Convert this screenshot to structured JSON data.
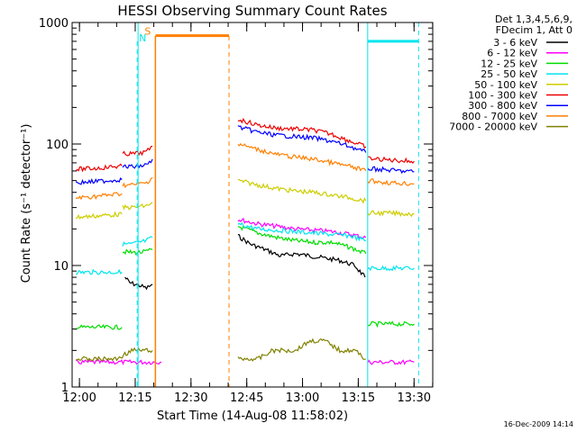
{
  "chart_data": {
    "type": "line",
    "title": "HESSI Observing Summary Count Rates",
    "xlabel": "Start Time (14-Aug-08 11:58:02)",
    "ylabel": "Count Rate (s⁻¹ detector⁻¹)",
    "yscale": "log",
    "ylim": [
      1,
      1000
    ],
    "xlim_minutes_after_start": [
      0,
      97
    ],
    "x_tick_labels": [
      "12:00",
      "12:15",
      "12:30",
      "12:45",
      "13:00",
      "13:15",
      "13:30"
    ],
    "y_tick_labels": [
      "1",
      "10",
      "100",
      "1000"
    ],
    "grid": false,
    "legend_position": "right",
    "legend_header": [
      "Det 1,3,4,5,6,9,",
      "FDecim 1, Att 0"
    ],
    "timestamp": "16-Dec-2009 14:14",
    "x_unit": "minutes after 11:58:02",
    "series": [
      {
        "name": "3 - 6 keV",
        "color": "#000000",
        "segments": [
          {
            "x": [
              14.2,
              15.5,
              17.0,
              18.5,
              20.0,
              21.6
            ],
            "y": [
              8,
              7.2,
              7.0,
              6.8,
              6.5,
              7.0
            ]
          },
          {
            "x": [
              44.6,
              48,
              52,
              56,
              60,
              64,
              68,
              72,
              76,
              78.8
            ],
            "y": [
              17.5,
              15,
              13.5,
              12,
              12.5,
              12,
              11.5,
              11,
              10,
              8
            ]
          }
        ]
      },
      {
        "name": "6 - 12 keV",
        "color": "#ff00ff",
        "segments": [
          {
            "x": [
              1,
              10,
              20,
              24
            ],
            "y": [
              1.6,
              1.6,
              1.6,
              1.6
            ]
          },
          {
            "x": [
              44.6,
              50,
              55,
              60,
              65,
              70,
              75,
              79
            ],
            "y": [
              24,
              22,
              21,
              20,
              19.5,
              19,
              18,
              17
            ]
          },
          {
            "x": [
              79.5,
              85,
              92
            ],
            "y": [
              1.6,
              1.6,
              1.6
            ]
          }
        ]
      },
      {
        "name": "12 - 25 keV",
        "color": "#00dd00",
        "segments": [
          {
            "x": [
              1,
              8,
              13.4
            ],
            "y": [
              3.1,
              3.1,
              3.1
            ]
          },
          {
            "x": [
              13.6,
              16,
              18,
              20,
              21.6
            ],
            "y": [
              13,
              12.8,
              12.8,
              13,
              13.5
            ]
          },
          {
            "x": [
              44.6,
              50,
              55,
              60,
              65,
              70,
              75,
              79
            ],
            "y": [
              21,
              18.5,
              17,
              16,
              15.5,
              15.5,
              14,
              12.5
            ]
          },
          {
            "x": [
              79.5,
              85,
              92
            ],
            "y": [
              3.3,
              3.3,
              3.3
            ]
          }
        ]
      },
      {
        "name": "25 - 50 keV",
        "color": "#00e5ee",
        "segments": [
          {
            "x": [
              1,
              6,
              13.4
            ],
            "y": [
              8.8,
              8.8,
              8.8
            ]
          },
          {
            "x": [
              13.6,
              16,
              18,
              20,
              21.6
            ],
            "y": [
              15,
              15,
              15.5,
              16,
              17
            ]
          },
          {
            "x": [
              44.6,
              50,
              55,
              60,
              65,
              70,
              75,
              79
            ],
            "y": [
              22,
              20,
              19.5,
              19,
              18.5,
              18,
              17.5,
              16
            ]
          },
          {
            "x": [
              79.5,
              85,
              92
            ],
            "y": [
              9.5,
              9.5,
              9.5
            ]
          }
        ]
      },
      {
        "name": "50 - 100 keV",
        "color": "#cdcd00",
        "segments": [
          {
            "x": [
              1,
              6,
              13.4
            ],
            "y": [
              25,
              25.5,
              26.5
            ]
          },
          {
            "x": [
              13.6,
              16,
              18,
              20,
              21.6
            ],
            "y": [
              30,
              30,
              30.5,
              31,
              33
            ]
          },
          {
            "x": [
              44.6,
              50,
              55,
              60,
              65,
              70,
              75,
              79
            ],
            "y": [
              50,
              46,
              43,
              41,
              40,
              38,
              36,
              34
            ]
          },
          {
            "x": [
              79.5,
              85,
              92
            ],
            "y": [
              27,
              27,
              26.5
            ]
          }
        ]
      },
      {
        "name": "100 - 300 keV",
        "color": "#ee0000",
        "segments": [
          {
            "x": [
              1,
              6,
              13.4
            ],
            "y": [
              62,
              63,
              66
            ]
          },
          {
            "x": [
              13.6,
              16,
              18,
              20,
              21.6
            ],
            "y": [
              83,
              83,
              84,
              86,
              96
            ]
          },
          {
            "x": [
              44.6,
              50,
              55,
              60,
              65,
              70,
              75,
              79
            ],
            "y": [
              160,
              143,
              135,
              133,
              130,
              120,
              105,
              95
            ]
          },
          {
            "x": [
              79.5,
              85,
              92
            ],
            "y": [
              76,
              74,
              72
            ]
          }
        ]
      },
      {
        "name": "300 - 800 keV",
        "color": "#0000ff",
        "segments": [
          {
            "x": [
              1,
              6,
              13.4
            ],
            "y": [
              48,
              49,
              51
            ]
          },
          {
            "x": [
              13.6,
              16,
              18,
              20,
              21.6
            ],
            "y": [
              65,
              65,
              66,
              67,
              75
            ]
          },
          {
            "x": [
              44.6,
              50,
              55,
              60,
              65,
              70,
              75,
              79
            ],
            "y": [
              138,
              125,
              118,
              115,
              112,
              105,
              95,
              85
            ]
          },
          {
            "x": [
              79.5,
              85,
              92
            ],
            "y": [
              63,
              61,
              59
            ]
          }
        ]
      },
      {
        "name": "800 - 7000 keV",
        "color": "#ff8000",
        "segments": [
          {
            "x": [
              1,
              6,
              13.4
            ],
            "y": [
              36,
              37,
              39
            ]
          },
          {
            "x": [
              13.6,
              16,
              18,
              20,
              21.6
            ],
            "y": [
              46,
              46,
              47,
              48,
              53
            ]
          },
          {
            "x": [
              44.6,
              50,
              55,
              60,
              65,
              70,
              75,
              79
            ],
            "y": [
              100,
              90,
              82,
              78,
              75,
              70,
              65,
              60
            ]
          },
          {
            "x": [
              79.5,
              85,
              92
            ],
            "y": [
              50,
              48,
              47
            ]
          }
        ]
      },
      {
        "name": "7000 - 20000 keV",
        "color": "#808000",
        "segments": [
          {
            "x": [
              1,
              6,
              12,
              16,
              21.6
            ],
            "y": [
              1.7,
              1.7,
              1.7,
              2.0,
              2.0
            ]
          },
          {
            "x": [
              44.6,
              50,
              54,
              60,
              64,
              68,
              72,
              76,
              79
            ],
            "y": [
              1.7,
              1.7,
              2.0,
              2.0,
              2.4,
              2.4,
              2.0,
              2.0,
              1.7
            ]
          }
        ]
      }
    ],
    "annotations": [
      {
        "label": "N",
        "color": "#00e5ee",
        "x_start": 17.5,
        "x_end": 93.2,
        "gap": [
          17.5,
          79.5
        ],
        "level": 700
      },
      {
        "label": "S",
        "color": "#ff8000",
        "x_start": 22.4,
        "x_end": 42.2,
        "level": 780
      }
    ]
  }
}
